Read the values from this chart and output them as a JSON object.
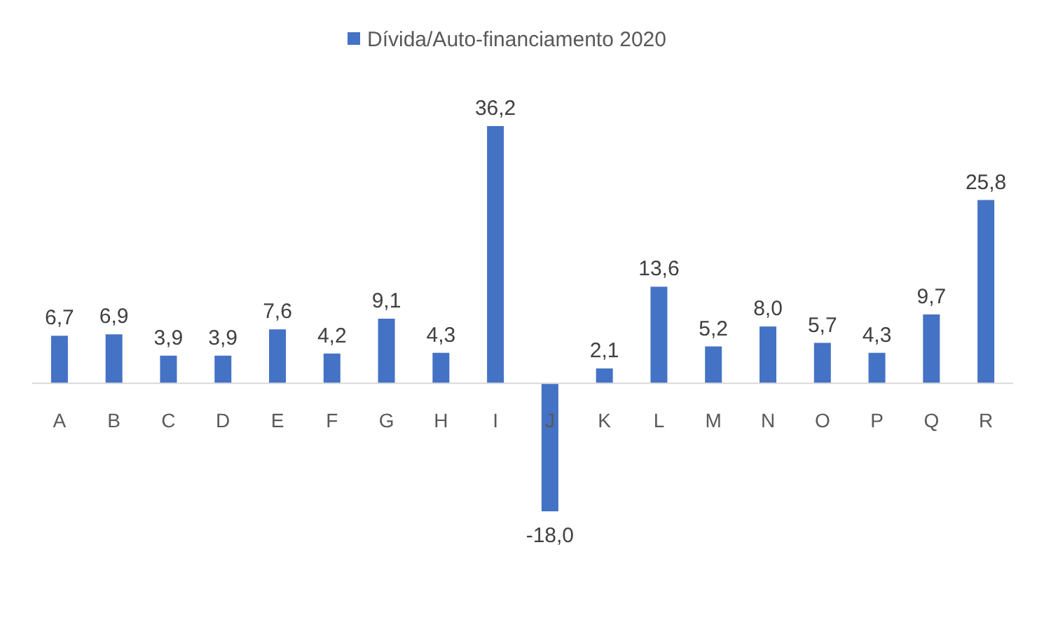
{
  "chart_data": {
    "type": "bar",
    "categories": [
      "A",
      "B",
      "C",
      "D",
      "E",
      "F",
      "G",
      "H",
      "I",
      "J",
      "K",
      "L",
      "M",
      "N",
      "O",
      "P",
      "Q",
      "R"
    ],
    "series": [
      {
        "name": "Dívida/Auto-financiamento 2020",
        "color": "#4472c4",
        "values": [
          6.7,
          6.9,
          3.9,
          3.9,
          7.6,
          4.2,
          9.1,
          4.3,
          36.2,
          -18.0,
          2.1,
          13.6,
          5.2,
          8.0,
          5.7,
          4.3,
          9.7,
          25.8
        ],
        "value_labels": [
          "6,7",
          "6,9",
          "3,9",
          "3,9",
          "7,6",
          "4,2",
          "9,1",
          "4,3",
          "36,2",
          "-18,0",
          "2,1",
          "13,6",
          "5,2",
          "8,0",
          "5,7",
          "4,3",
          "9,7",
          "25,8"
        ]
      }
    ],
    "legend": "top"
  }
}
